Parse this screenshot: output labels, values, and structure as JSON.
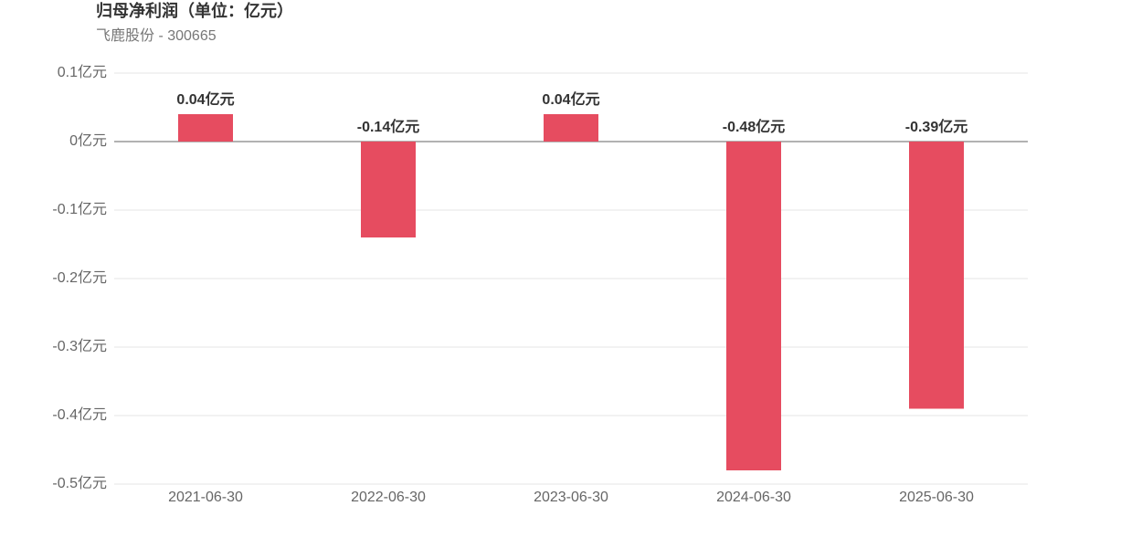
{
  "chart_data": {
    "type": "bar",
    "title": "归母净利润（单位：亿元）",
    "subtitle": "飞鹿股份 - 300665",
    "categories": [
      "2021-06-30",
      "2022-06-30",
      "2023-06-30",
      "2024-06-30",
      "2025-06-30"
    ],
    "values": [
      0.04,
      -0.14,
      0.04,
      -0.48,
      -0.39
    ],
    "value_labels": [
      "0.04亿元",
      "-0.14亿元",
      "0.04亿元",
      "-0.48亿元",
      "-0.39亿元"
    ],
    "color": "#e64c60",
    "ylim": [
      -0.5,
      0.1
    ],
    "yticks": [
      {
        "value": 0.1,
        "label": "0.1亿元"
      },
      {
        "value": 0,
        "label": "0亿元"
      },
      {
        "value": -0.1,
        "label": "-0.1亿元"
      },
      {
        "value": -0.2,
        "label": "-0.2亿元"
      },
      {
        "value": -0.3,
        "label": "-0.3亿元"
      },
      {
        "value": -0.4,
        "label": "-0.4亿元"
      },
      {
        "value": -0.5,
        "label": "-0.5亿元"
      }
    ],
    "grid": true
  }
}
